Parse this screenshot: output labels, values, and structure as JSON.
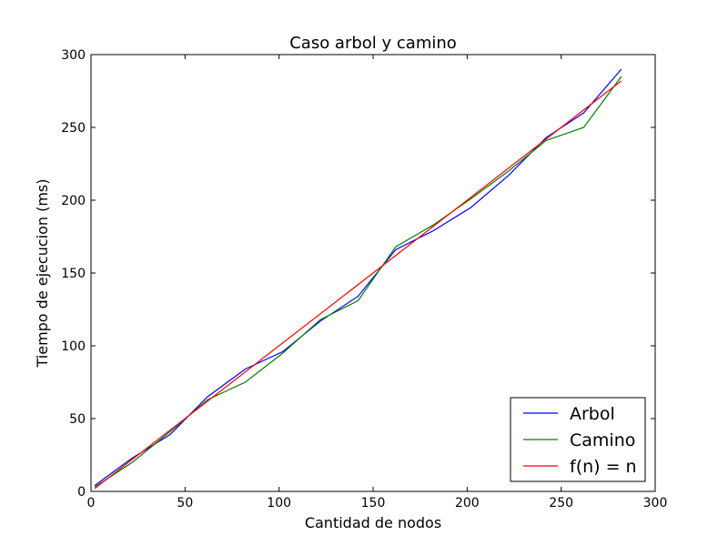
{
  "chart_data": {
    "type": "line",
    "title": "Caso arbol y camino",
    "xlabel": "Cantidad de nodos",
    "ylabel": "Tiempo de ejecucion (ms)",
    "xlim": [
      0,
      300
    ],
    "ylim": [
      0,
      300
    ],
    "xticks": [
      0,
      50,
      100,
      150,
      200,
      250,
      300
    ],
    "yticks": [
      0,
      50,
      100,
      150,
      200,
      250,
      300
    ],
    "grid": false,
    "legend_position": "lower-right",
    "series": [
      {
        "name": "Arbol",
        "color": "#0000ff",
        "x": [
          2,
          22,
          42,
          62,
          82,
          102,
          122,
          142,
          162,
          182,
          202,
          222,
          242,
          262,
          282
        ],
        "y": [
          4,
          23,
          39,
          65,
          84,
          96,
          117,
          134,
          166,
          179,
          195,
          217,
          243,
          260,
          290
        ]
      },
      {
        "name": "Camino",
        "color": "#008000",
        "x": [
          2,
          22,
          42,
          62,
          82,
          102,
          122,
          142,
          162,
          182,
          202,
          222,
          242,
          262,
          282
        ],
        "y": [
          3,
          20,
          41,
          63,
          75,
          95,
          118,
          131,
          168,
          183,
          201,
          220,
          241,
          250,
          285
        ]
      },
      {
        "name": "f(n) = n",
        "color": "#ff0000",
        "x": [
          2,
          282
        ],
        "y": [
          2,
          282
        ]
      }
    ]
  }
}
